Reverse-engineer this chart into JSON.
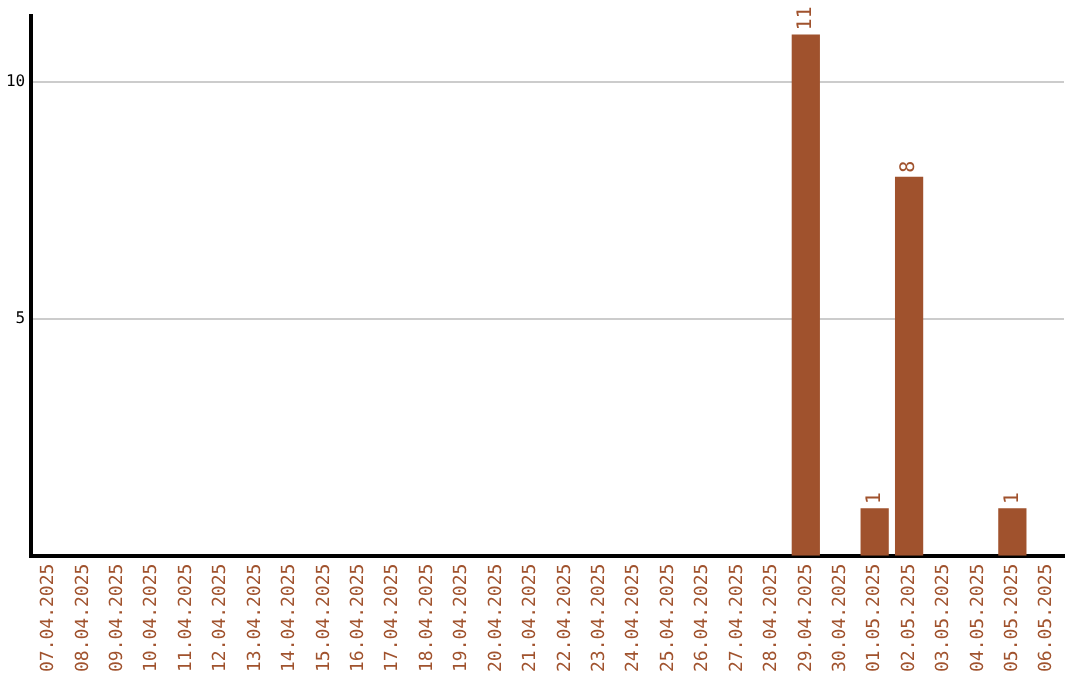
{
  "chart_data": {
    "type": "bar",
    "categories": [
      "07.04.2025",
      "08.04.2025",
      "09.04.2025",
      "10.04.2025",
      "11.04.2025",
      "12.04.2025",
      "13.04.2025",
      "14.04.2025",
      "15.04.2025",
      "16.04.2025",
      "17.04.2025",
      "18.04.2025",
      "19.04.2025",
      "20.04.2025",
      "21.04.2025",
      "22.04.2025",
      "23.04.2025",
      "24.04.2025",
      "25.04.2025",
      "26.04.2025",
      "27.04.2025",
      "28.04.2025",
      "29.04.2025",
      "30.04.2025",
      "01.05.2025",
      "02.05.2025",
      "03.05.2025",
      "04.05.2025",
      "05.05.2025",
      "06.05.2025"
    ],
    "values": [
      0,
      0,
      0,
      0,
      0,
      0,
      0,
      0,
      0,
      0,
      0,
      0,
      0,
      0,
      0,
      0,
      0,
      0,
      0,
      0,
      0,
      0,
      11,
      0,
      1,
      8,
      0,
      0,
      1,
      0
    ],
    "value_labels": [
      null,
      null,
      null,
      null,
      null,
      null,
      null,
      null,
      null,
      null,
      null,
      null,
      null,
      null,
      null,
      null,
      null,
      null,
      null,
      null,
      null,
      null,
      "11",
      null,
      "1",
      "8",
      null,
      null,
      "1",
      null
    ],
    "color": "#a0522d",
    "ylim": [
      0,
      11.4
    ],
    "yticks": [
      5,
      10
    ],
    "grid": "y",
    "legend": false
  }
}
